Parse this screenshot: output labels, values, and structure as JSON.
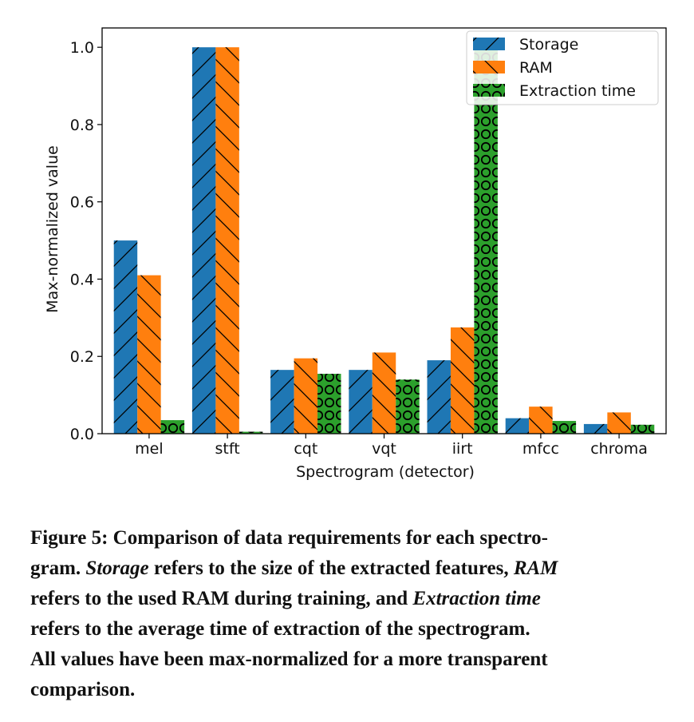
{
  "chart_data": {
    "type": "bar",
    "xlabel": "Spectrogram (detector)",
    "ylabel": "Max-normalized value",
    "ylim": [
      0,
      1.05
    ],
    "yticks": [
      "0.0",
      "0.2",
      "0.4",
      "0.6",
      "0.8",
      "1.0"
    ],
    "categories": [
      "mel",
      "stft",
      "cqt",
      "vqt",
      "iirt",
      "mfcc",
      "chroma"
    ],
    "legend_position": "top-right",
    "series": [
      {
        "name": "Storage",
        "color": "#1f77b4",
        "hatch": "forward-slash",
        "values": [
          0.5,
          1.0,
          0.165,
          0.165,
          0.19,
          0.04,
          0.025
        ]
      },
      {
        "name": "RAM",
        "color": "#ff7f0e",
        "hatch": "back-slash",
        "values": [
          0.41,
          1.0,
          0.195,
          0.21,
          0.275,
          0.07,
          0.055
        ]
      },
      {
        "name": "Extraction time",
        "color": "#2ca02c",
        "hatch": "circles",
        "values": [
          0.035,
          0.005,
          0.155,
          0.14,
          1.0,
          0.033,
          0.023
        ]
      }
    ]
  },
  "caption": {
    "lines": [
      [
        {
          "t": "Figure 5: Comparison of data requirements for each spectro-",
          "i": false
        }
      ],
      [
        {
          "t": "gram. ",
          "i": false
        },
        {
          "t": "Storage",
          "i": true
        },
        {
          "t": " refers to the size of the extracted features, ",
          "i": false
        },
        {
          "t": "RAM",
          "i": true
        }
      ],
      [
        {
          "t": "refers to the used RAM during training, and ",
          "i": false
        },
        {
          "t": "Extraction time",
          "i": true
        }
      ],
      [
        {
          "t": "refers to the average time of extraction of the spectrogram.",
          "i": false
        }
      ],
      [
        {
          "t": "All values have been max-normalized for a more transparent",
          "i": false
        }
      ],
      [
        {
          "t": "comparison.",
          "i": false
        }
      ]
    ]
  }
}
